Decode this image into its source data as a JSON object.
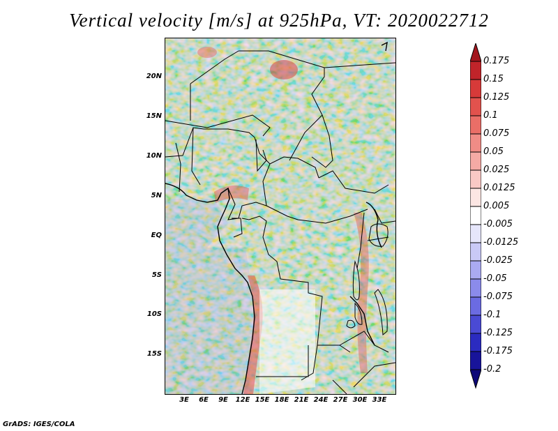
{
  "title": "Vertical velocity [m/s] at 925hPa, VT: 2020022712",
  "credit": "GrADS: IGES/COLA",
  "map": {
    "lat_labels": [
      "20N",
      "15N",
      "10N",
      "5N",
      "EQ",
      "5S",
      "10S",
      "15S"
    ],
    "lat_values": [
      20,
      15,
      10,
      5,
      0,
      -5,
      -10,
      -15
    ],
    "lon_labels": [
      "3E",
      "6E",
      "9E",
      "12E",
      "15E",
      "18E",
      "21E",
      "24E",
      "27E",
      "30E",
      "33E"
    ],
    "lon_values": [
      3,
      6,
      9,
      12,
      15,
      18,
      21,
      24,
      27,
      30,
      33
    ],
    "lon_range": [
      0.5,
      35.5
    ],
    "lat_range": [
      -19.5,
      25.5
    ]
  },
  "colorbar": {
    "labels": [
      "0.175",
      "0.15",
      "0.125",
      "0.1",
      "0.075",
      "0.05",
      "0.025",
      "0.0125",
      "0.005",
      "-0.005",
      "-0.0125",
      "-0.025",
      "-0.05",
      "-0.075",
      "-0.1",
      "-0.125",
      "-0.175",
      "-0.2"
    ],
    "colors": [
      "#a3161d",
      "#c0242a",
      "#d73a39",
      "#e2524d",
      "#ea6e67",
      "#f08c86",
      "#f5aaa5",
      "#f9c9c5",
      "#fce6e3",
      "#ffffff",
      "#e6e6fb",
      "#c9c9f6",
      "#aaaaf1",
      "#8b8beb",
      "#6b6be2",
      "#4a4ad4",
      "#2b2bc0",
      "#18149a",
      "#0d0878"
    ]
  }
}
